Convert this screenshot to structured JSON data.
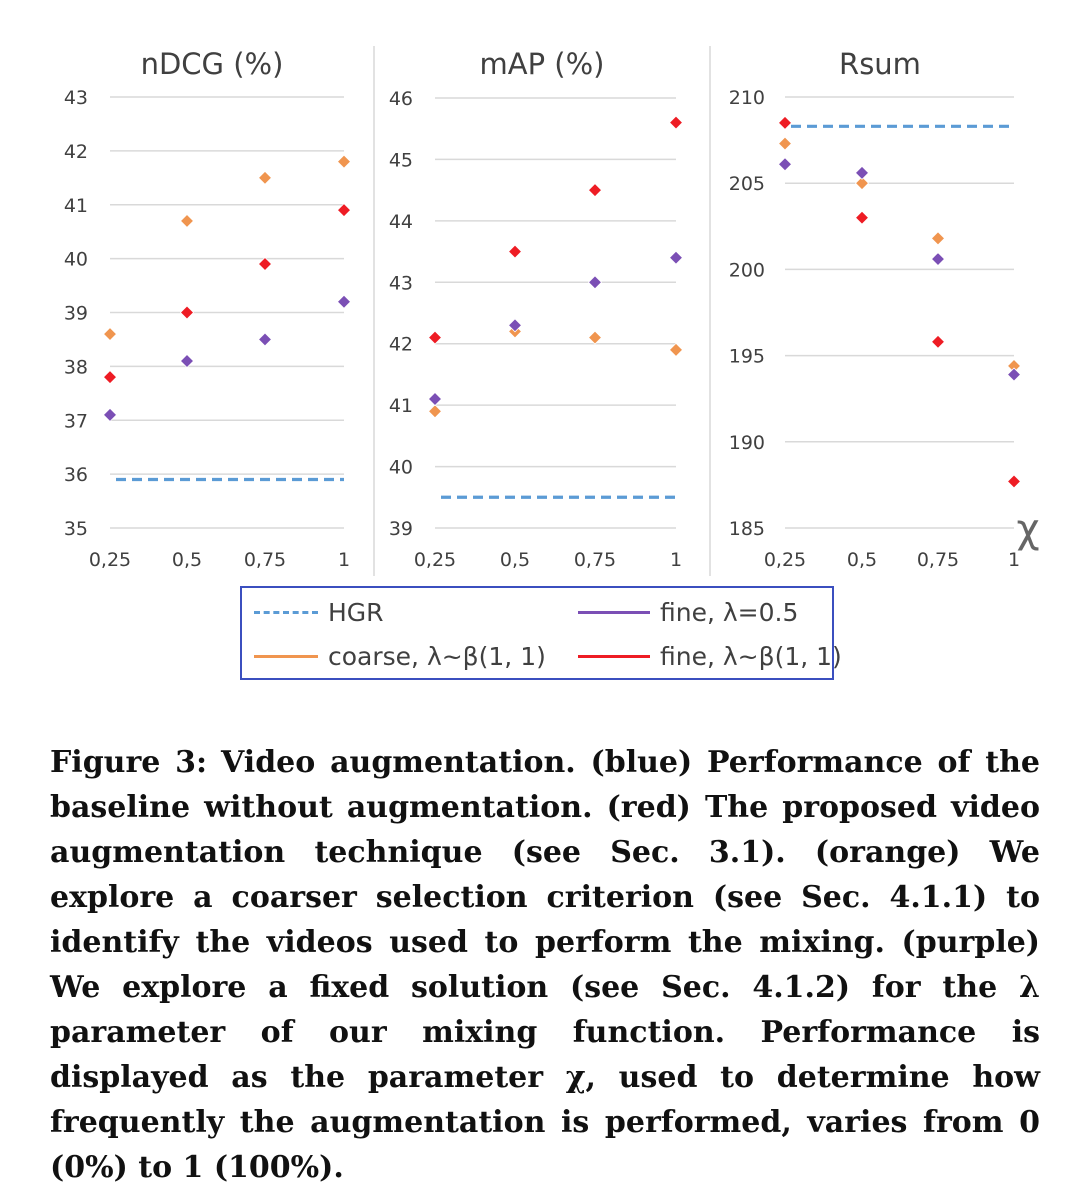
{
  "chart_data": [
    {
      "type": "scatter",
      "title": "nDCG (%)",
      "x": [
        "0,25",
        "0,5",
        "0,75",
        "1"
      ],
      "yticks": [
        "43",
        "42",
        "41",
        "40",
        "39",
        "38",
        "37",
        "36",
        "35"
      ],
      "ylim": [
        35,
        43
      ],
      "baseline": {
        "name": "HGR",
        "value": 35.9
      },
      "series": [
        {
          "name": "coarse, λ~β(1, 1)",
          "values": [
            38.6,
            40.7,
            41.5,
            41.8
          ]
        },
        {
          "name": "fine, λ=0.5",
          "values": [
            37.1,
            38.1,
            38.5,
            39.2
          ]
        },
        {
          "name": "fine, λ~β(1, 1)",
          "values": [
            37.8,
            39.0,
            39.9,
            40.9
          ]
        }
      ]
    },
    {
      "type": "scatter",
      "title": "mAP (%)",
      "x": [
        "0,25",
        "0,5",
        "0,75",
        "1"
      ],
      "yticks": [
        "46",
        "45",
        "44",
        "43",
        "42",
        "41",
        "40",
        "39"
      ],
      "ylim": [
        39,
        46
      ],
      "baseline": {
        "name": "HGR",
        "value": 39.5
      },
      "series": [
        {
          "name": "coarse, λ~β(1, 1)",
          "values": [
            40.9,
            42.2,
            42.1,
            41.9
          ]
        },
        {
          "name": "fine, λ=0.5",
          "values": [
            41.1,
            42.3,
            43.0,
            43.4
          ]
        },
        {
          "name": "fine, λ~β(1, 1)",
          "values": [
            42.1,
            43.5,
            44.5,
            45.6
          ]
        }
      ]
    },
    {
      "type": "scatter",
      "title": "Rsum",
      "x": [
        "0,25",
        "0,5",
        "0,75",
        "1"
      ],
      "xlabel": "χ",
      "yticks": [
        "210",
        "205",
        "200",
        "195",
        "190",
        "185"
      ],
      "ylim": [
        185,
        210
      ],
      "baseline": {
        "name": "HGR",
        "value": 208.3
      },
      "series": [
        {
          "name": "coarse, λ~β(1, 1)",
          "values": [
            207.3,
            205.0,
            201.8,
            194.4
          ]
        },
        {
          "name": "fine, λ=0.5",
          "values": [
            206.1,
            205.6,
            200.6,
            193.9
          ]
        },
        {
          "name": "fine, λ~β(1, 1)",
          "values": [
            208.5,
            203.0,
            195.8,
            187.7
          ]
        }
      ]
    }
  ],
  "colors": {
    "HGR": "#5b9bd5",
    "coarse": "#f0954f",
    "fine_fixed": "#7b4fb5",
    "fine_beta": "#ee1c24",
    "grid": "#d9d9d9",
    "axis_text": "#404040",
    "legend_border": "#3b4fbf"
  },
  "legend": {
    "hgr": "HGR",
    "fine_fixed": "fine, λ=0.5",
    "coarse": "coarse, λ~β(1, 1)",
    "fine_beta": "fine, λ~β(1, 1)"
  },
  "caption": {
    "label": "Figure 3:",
    "text": "Video augmentation. (blue) Performance of the baseline without augmentation. (red) The proposed video augmentation technique (see Sec. 3.1). (orange) We explore a coarser selection criterion (see Sec. 4.1.1) to identify the videos used to perform the mixing. (purple) We explore a fixed solution (see Sec. 4.1.2) for the λ parameter of our mixing function. Performance is displayed as the parameter χ, used to determine how frequently the augmentation is performed, varies from 0 (0%) to 1 (100%)."
  }
}
